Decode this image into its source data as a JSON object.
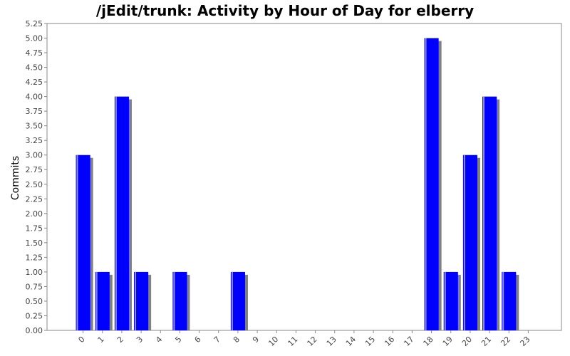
{
  "chart_data": {
    "type": "bar",
    "title": "/jEdit/trunk: Activity by Hour of Day for elberry",
    "xlabel": "",
    "ylabel": "Commits",
    "categories": [
      "0",
      "1",
      "2",
      "3",
      "4",
      "5",
      "6",
      "7",
      "8",
      "9",
      "10",
      "11",
      "12",
      "13",
      "14",
      "15",
      "16",
      "17",
      "18",
      "19",
      "20",
      "21",
      "22",
      "23"
    ],
    "values": [
      3,
      1,
      4,
      1,
      0,
      1,
      0,
      0,
      1,
      0,
      0,
      0,
      0,
      0,
      0,
      0,
      0,
      0,
      5,
      1,
      3,
      4,
      1,
      0
    ],
    "ylim": [
      0,
      5.25
    ],
    "ytick_step": 0.25,
    "ytick_labels": [
      "0.00",
      "0.25",
      "0.50",
      "0.75",
      "1.00",
      "1.25",
      "1.50",
      "1.75",
      "2.00",
      "2.25",
      "2.50",
      "2.75",
      "3.00",
      "3.25",
      "3.50",
      "3.75",
      "4.00",
      "4.25",
      "4.50",
      "4.75",
      "5.00",
      "5.25"
    ],
    "grid": false,
    "legend": "none",
    "colors": {
      "bar": "#0000ff",
      "bar_highlight": "#8c8cff",
      "shadow": "#808080",
      "axis": "#888888"
    }
  }
}
